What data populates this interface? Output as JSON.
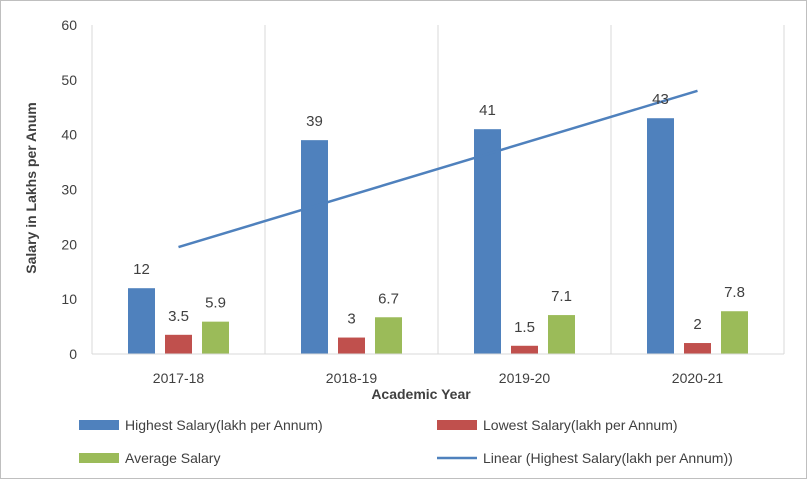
{
  "chart_data": {
    "type": "bar",
    "title": "",
    "xlabel": "Academic Year",
    "ylabel": "Salary in Lakhs per Anum",
    "ylim": [
      0,
      60
    ],
    "yticks": [
      "0",
      "10",
      "20",
      "30",
      "40",
      "50",
      "60"
    ],
    "categories": [
      "2017-18",
      "2018-19",
      "2019-20",
      "2020-21"
    ],
    "grid": "vertical category separators",
    "legend_position": "bottom",
    "series": [
      {
        "name": "Highest Salary(lakh per Annum)",
        "color": "#4f81bd",
        "values": [
          12,
          39,
          41,
          43
        ],
        "labels": [
          "12",
          "39",
          "41",
          "43"
        ]
      },
      {
        "name": "Lowest Salary(lakh per Annum)",
        "color": "#c0504d",
        "values": [
          3.5,
          3,
          1.5,
          2
        ],
        "labels": [
          "3.5",
          "3",
          "1.5",
          "2"
        ]
      },
      {
        "name": "Average Salary",
        "color": "#9bbb59",
        "values": [
          5.9,
          6.7,
          7.1,
          7.8
        ],
        "labels": [
          "5.9",
          "6.7",
          "7.1",
          "7.8"
        ]
      }
    ],
    "trendline": {
      "name": "Linear (Highest Salary(lakh per Annum))",
      "type": "linear",
      "color": "#4f81bd",
      "values": [
        19.5,
        29,
        38.5,
        48
      ]
    }
  }
}
